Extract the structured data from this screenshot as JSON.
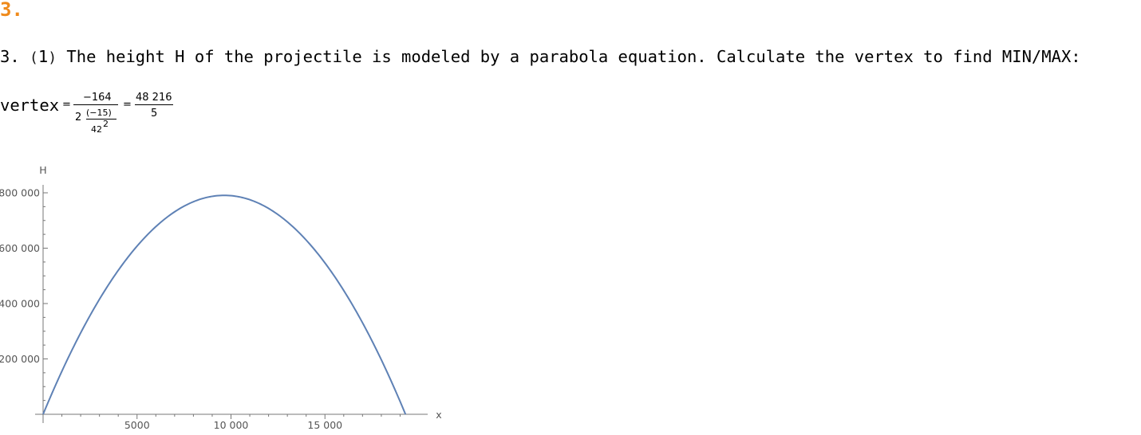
{
  "section": {
    "number": "3."
  },
  "problem": {
    "prefix": "3. ",
    "paren_open": "(",
    "part": "1",
    "paren_close": ")",
    "text": " The height H of the projectile is modeled by a parabola equation. Calculate the vertex to find MIN/MAX:"
  },
  "vertex": {
    "label": "vertex",
    "equals1": "=",
    "numerator": "−164",
    "den_coeff": "2",
    "den_frac_num": "(−15)",
    "den_frac_den_base": "42",
    "den_frac_den_exp": "2",
    "equals2": "=",
    "result_num": "48 216",
    "result_den": "5"
  },
  "chart_data": {
    "type": "line",
    "xlabel": "x",
    "ylabel": "H",
    "xlim": [
      0,
      20000
    ],
    "ylim": [
      0,
      800000
    ],
    "xticks": [
      5000,
      10000,
      15000
    ],
    "xtick_labels": [
      "5000",
      "10 000",
      "15 000"
    ],
    "yticks": [
      200000,
      400000,
      600000,
      800000
    ],
    "ytick_labels": [
      "200 000",
      "400 000",
      "600 000",
      "800 000"
    ],
    "grid": false,
    "series": [
      {
        "color": "#5e81b5",
        "equation": {
          "a": -0.00850340136,
          "b": 164,
          "c": 0
        },
        "x_range": [
          0,
          19287
        ]
      }
    ]
  }
}
